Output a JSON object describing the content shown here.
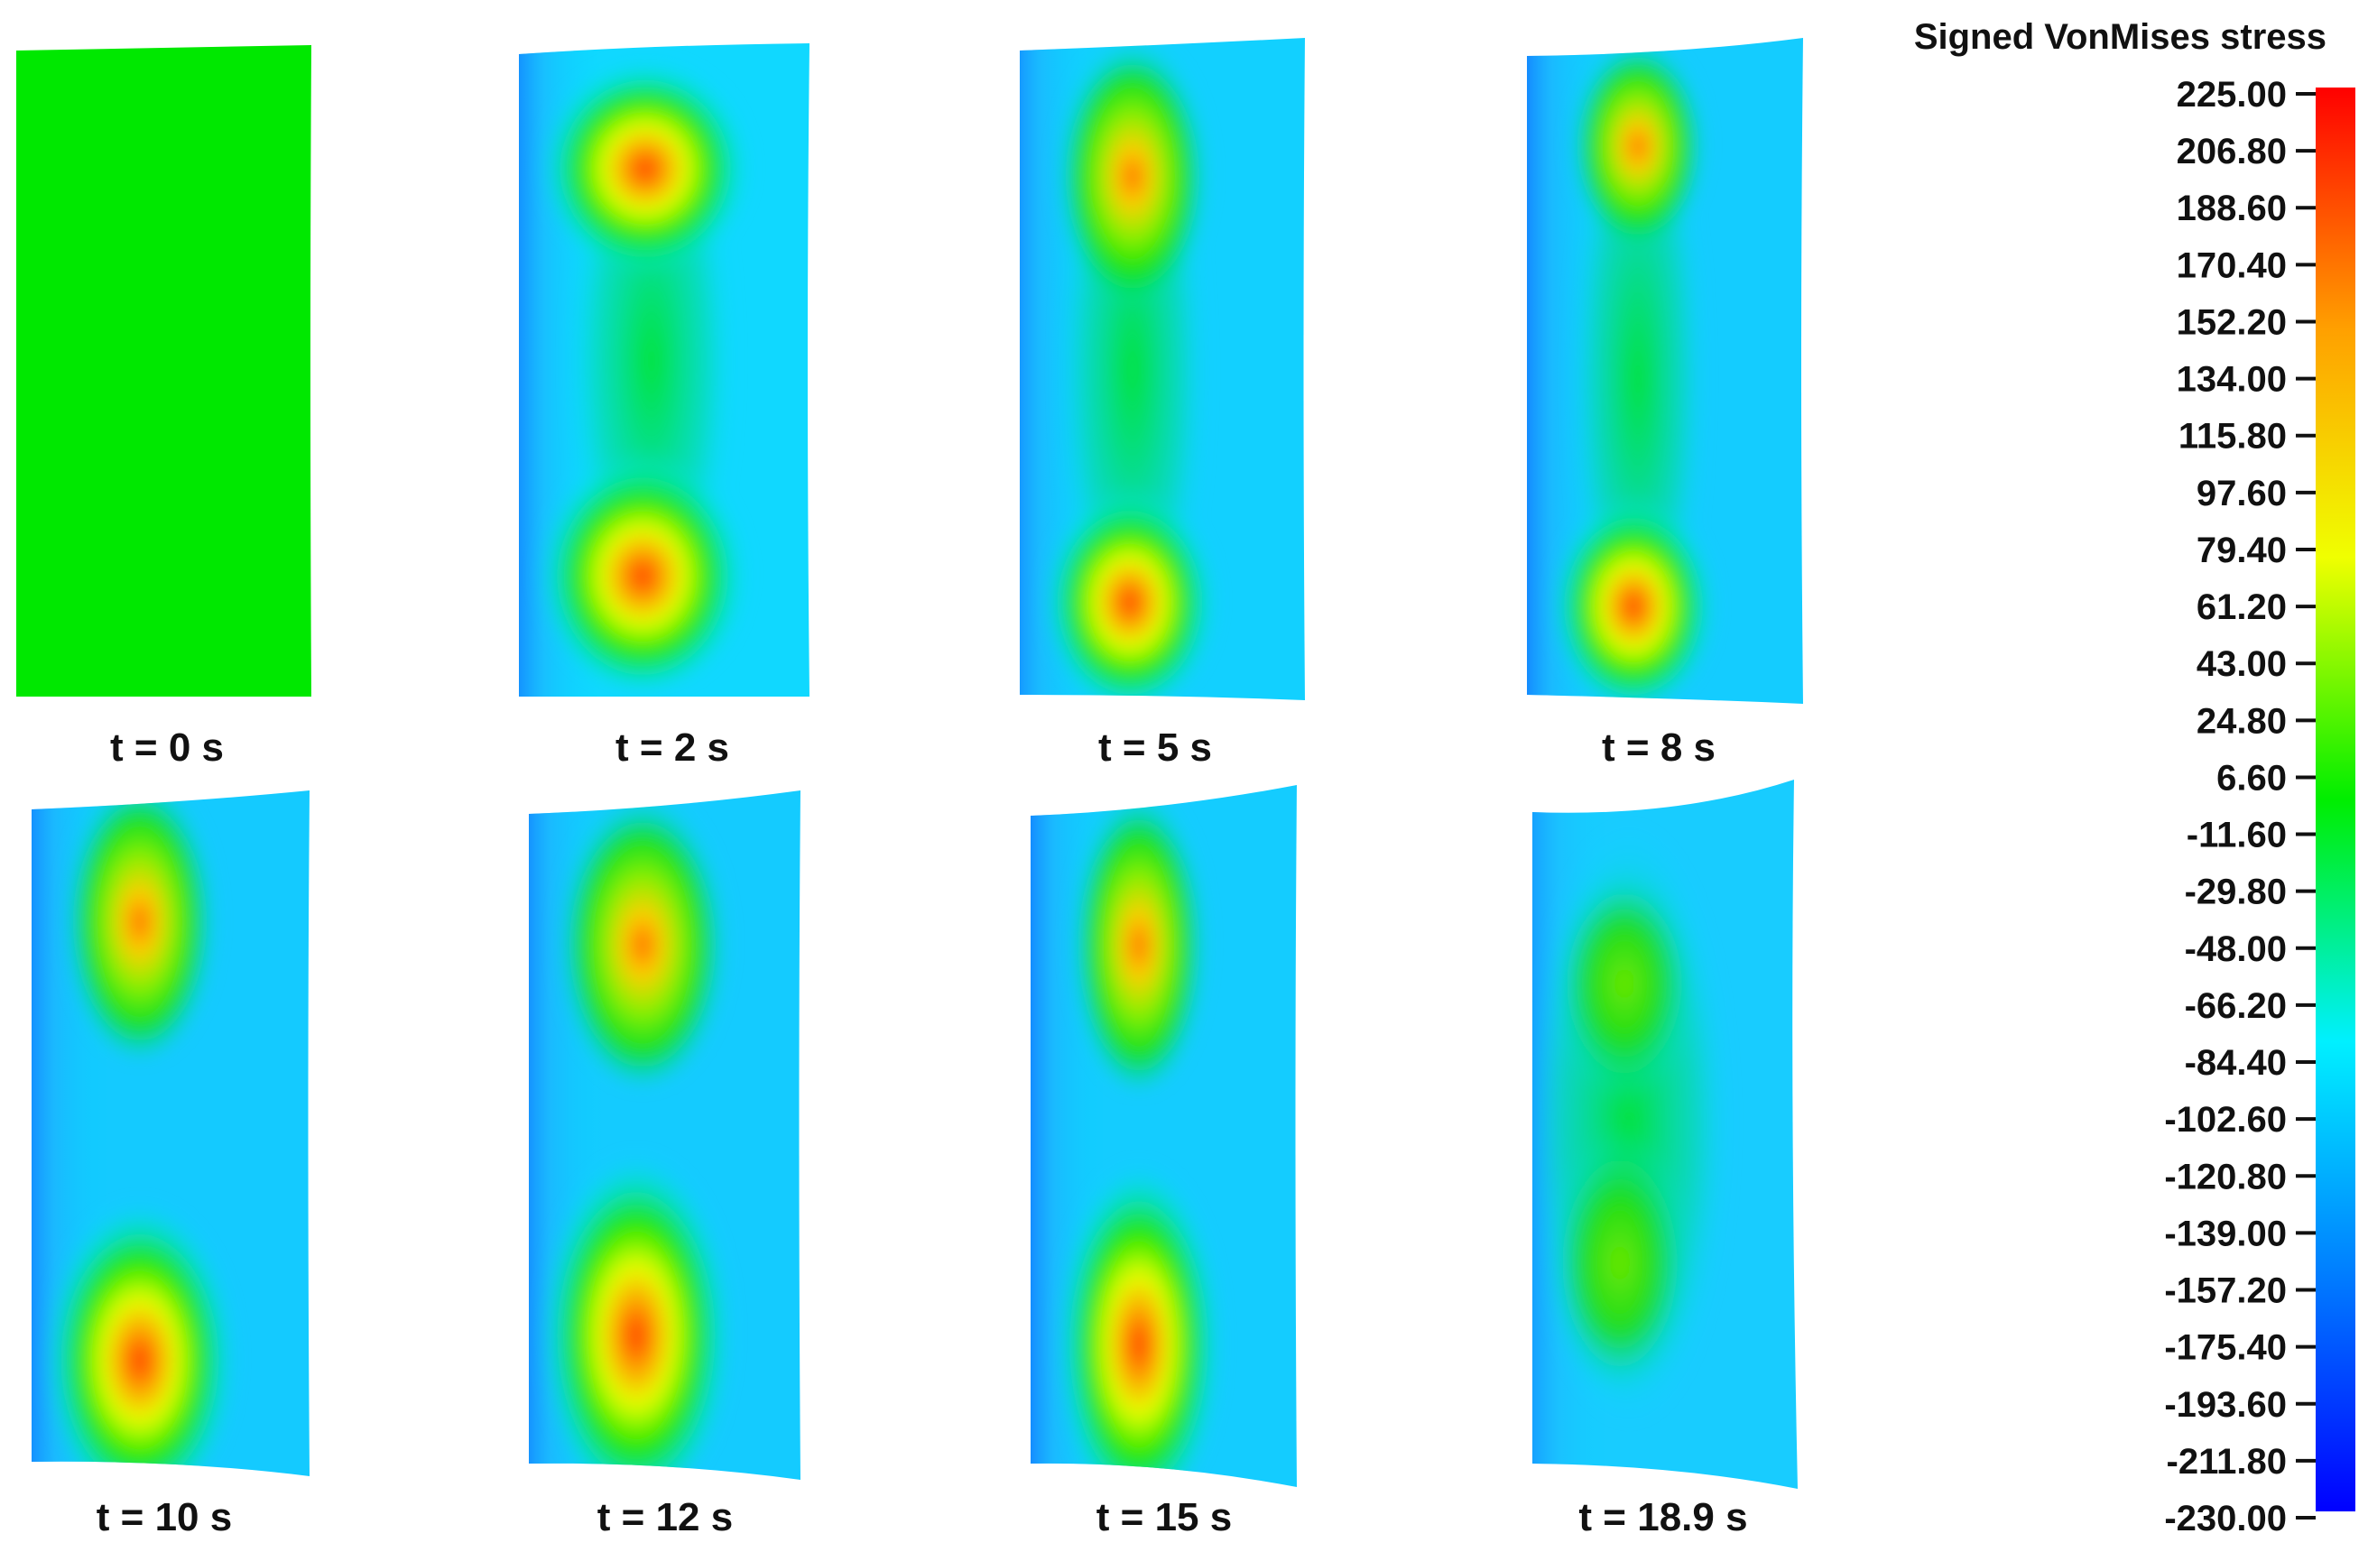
{
  "legend": {
    "title": "Signed VonMises stress",
    "max": 225.0,
    "min": -230.0,
    "ticks": [
      "225.00",
      "206.80",
      "188.60",
      "170.40",
      "152.20",
      "134.00",
      "115.80",
      "97.60",
      "79.40",
      "61.20",
      "43.00",
      "24.80",
      "6.60",
      "-11.60",
      "-29.80",
      "-48.00",
      "-66.20",
      "-84.40",
      "-102.60",
      "-120.80",
      "-139.00",
      "-157.20",
      "-175.40",
      "-193.60",
      "-211.80",
      "-230.00"
    ],
    "colors": [
      "#ff0000",
      "#ffa000",
      "#f0ff00",
      "#00ee00",
      "#00f0ff",
      "#0080ff",
      "#0000ff"
    ]
  },
  "panels": [
    {
      "label": "t = 0 s",
      "uniform": true
    },
    {
      "label": "t = 2 s"
    },
    {
      "label": "t = 5 s"
    },
    {
      "label": "t = 8 s"
    },
    {
      "label": "t = 10 s"
    },
    {
      "label": "t = 12 s"
    },
    {
      "label": "t = 15 s"
    },
    {
      "label": "t = 18.9 s"
    }
  ]
}
